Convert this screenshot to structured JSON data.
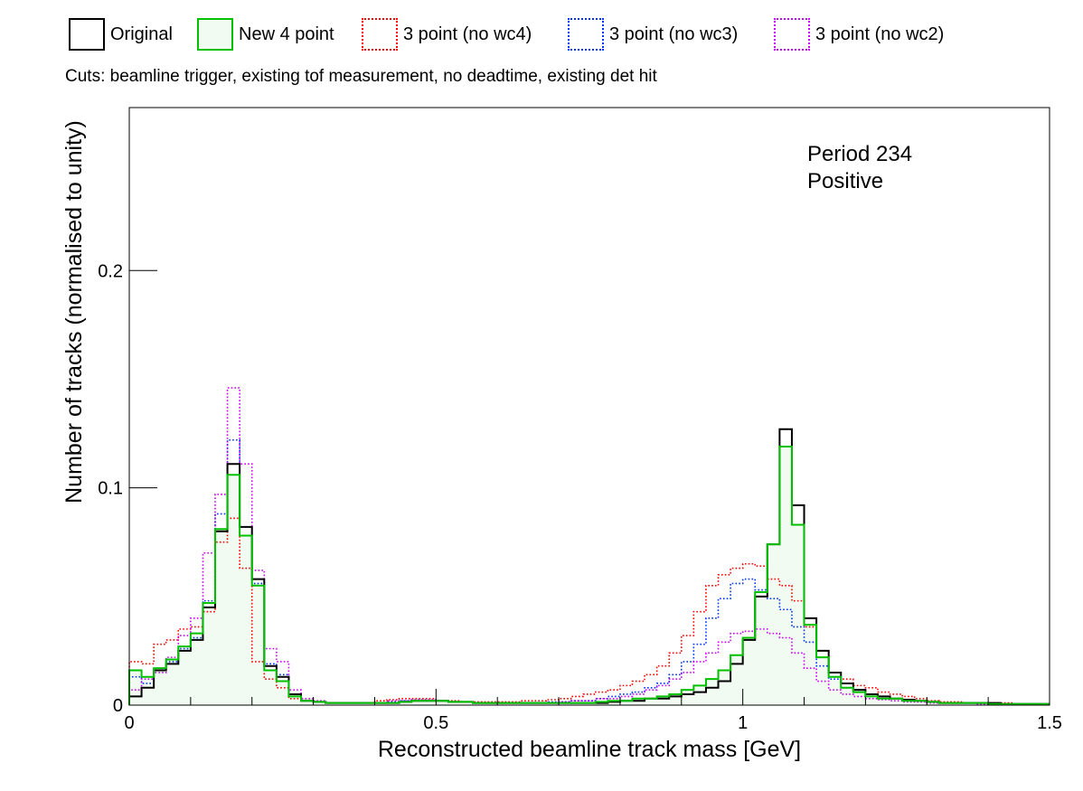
{
  "cuts_text": "Cuts: beamline trigger, existing tof measurement, no deadtime, existing det hit",
  "annotation": [
    "Period 234",
    "Positive"
  ],
  "chart_data": {
    "type": "line",
    "xlabel": "Reconstructed beamline track mass [GeV]",
    "ylabel": "Number of tracks (normalised to unity)",
    "xlim": [
      0,
      1.5
    ],
    "ylim": [
      0,
      0.275
    ],
    "xticks": [
      {
        "v": 0,
        "label": "0"
      },
      {
        "v": 0.5,
        "label": "0.5"
      },
      {
        "v": 1,
        "label": "1"
      },
      {
        "v": 1.5,
        "label": "1.5"
      }
    ],
    "yticks": [
      {
        "v": 0,
        "label": "0"
      },
      {
        "v": 0.1,
        "label": "0.1"
      },
      {
        "v": 0.2,
        "label": "0.2"
      }
    ],
    "bin_width": 0.02,
    "x_start": 0,
    "series": [
      {
        "name": "Original",
        "color": "#000000",
        "style": "solid",
        "fill": false,
        "values": [
          0.004,
          0.008,
          0.016,
          0.019,
          0.025,
          0.03,
          0.045,
          0.08,
          0.111,
          0.082,
          0.058,
          0.018,
          0.013,
          0.005,
          0.002,
          0.0015,
          0.001,
          0.001,
          0.001,
          0.001,
          0.001,
          0.001,
          0.0015,
          0.002,
          0.002,
          0.002,
          0.0015,
          0.0015,
          0.001,
          0.001,
          0.001,
          0.001,
          0.001,
          0.001,
          0.001,
          0.001,
          0.001,
          0.001,
          0.001,
          0.0015,
          0.002,
          0.002,
          0.003,
          0.003,
          0.004,
          0.005,
          0.006,
          0.008,
          0.011,
          0.019,
          0.03,
          0.05,
          0.074,
          0.127,
          0.092,
          0.04,
          0.025,
          0.015,
          0.01,
          0.007,
          0.005,
          0.004,
          0.003,
          0.0025,
          0.002,
          0.0015,
          0.001,
          0.001,
          0.001,
          0.001,
          0.001,
          0.0005,
          0.0005,
          0.0005,
          0.0005
        ]
      },
      {
        "name": "New 4 point",
        "color": "#00c000",
        "style": "solid",
        "fill": true,
        "fill_color": "#f1fbf1",
        "values": [
          0.016,
          0.013,
          0.017,
          0.021,
          0.027,
          0.033,
          0.047,
          0.081,
          0.106,
          0.078,
          0.055,
          0.016,
          0.011,
          0.004,
          0.002,
          0.0015,
          0.001,
          0.001,
          0.001,
          0.001,
          0.001,
          0.001,
          0.0015,
          0.002,
          0.002,
          0.002,
          0.0015,
          0.0015,
          0.001,
          0.001,
          0.001,
          0.001,
          0.001,
          0.001,
          0.001,
          0.001,
          0.001,
          0.001,
          0.0015,
          0.002,
          0.002,
          0.003,
          0.003,
          0.004,
          0.005,
          0.007,
          0.009,
          0.012,
          0.016,
          0.023,
          0.031,
          0.052,
          0.074,
          0.119,
          0.083,
          0.037,
          0.022,
          0.013,
          0.008,
          0.006,
          0.004,
          0.003,
          0.003,
          0.002,
          0.002,
          0.0015,
          0.001,
          0.001,
          0.001,
          0.001,
          0.0005,
          0.0005,
          0.0005,
          0.0005,
          0.0005
        ]
      },
      {
        "name": "3 point (no wc4)",
        "color": "#ff0000",
        "style": "dotted",
        "fill": false,
        "values": [
          0.02,
          0.019,
          0.028,
          0.03,
          0.035,
          0.036,
          0.043,
          0.075,
          0.086,
          0.063,
          0.02,
          0.012,
          0.008,
          0.003,
          0.002,
          0.0015,
          0.001,
          0.001,
          0.001,
          0.001,
          0.002,
          0.0025,
          0.003,
          0.003,
          0.003,
          0.002,
          0.002,
          0.0015,
          0.0015,
          0.0015,
          0.0015,
          0.0015,
          0.002,
          0.002,
          0.0025,
          0.003,
          0.004,
          0.005,
          0.006,
          0.007,
          0.009,
          0.011,
          0.014,
          0.018,
          0.024,
          0.032,
          0.043,
          0.055,
          0.06,
          0.063,
          0.065,
          0.064,
          0.058,
          0.055,
          0.048,
          0.036,
          0.022,
          0.015,
          0.012,
          0.009,
          0.008,
          0.006,
          0.005,
          0.004,
          0.003,
          0.002,
          0.0015,
          0.0015,
          0.001,
          0.001,
          0.001,
          0.001,
          0.0005,
          0.0005,
          0.0005
        ]
      },
      {
        "name": "3 point (no wc3)",
        "color": "#0033ff",
        "style": "dotted",
        "fill": false,
        "values": [
          0.013,
          0.01,
          0.016,
          0.02,
          0.026,
          0.031,
          0.048,
          0.088,
          0.122,
          0.082,
          0.056,
          0.019,
          0.014,
          0.005,
          0.002,
          0.0015,
          0.001,
          0.001,
          0.001,
          0.001,
          0.001,
          0.0015,
          0.002,
          0.002,
          0.002,
          0.002,
          0.0015,
          0.0015,
          0.001,
          0.001,
          0.001,
          0.001,
          0.001,
          0.001,
          0.0015,
          0.0015,
          0.002,
          0.002,
          0.003,
          0.004,
          0.005,
          0.006,
          0.008,
          0.01,
          0.014,
          0.02,
          0.028,
          0.04,
          0.049,
          0.056,
          0.058,
          0.053,
          0.049,
          0.044,
          0.036,
          0.029,
          0.018,
          0.012,
          0.008,
          0.006,
          0.005,
          0.004,
          0.003,
          0.0025,
          0.002,
          0.0015,
          0.001,
          0.001,
          0.001,
          0.001,
          0.0005,
          0.0005,
          0.0005,
          0.0005,
          0.0005
        ]
      },
      {
        "name": "3 point (no wc2)",
        "color": "#cc00ff",
        "style": "dotted",
        "fill": false,
        "values": [
          0.007,
          0.012,
          0.015,
          0.022,
          0.032,
          0.04,
          0.07,
          0.097,
          0.146,
          0.111,
          0.062,
          0.026,
          0.02,
          0.007,
          0.003,
          0.002,
          0.001,
          0.001,
          0.001,
          0.001,
          0.001,
          0.002,
          0.002,
          0.0025,
          0.0025,
          0.002,
          0.0015,
          0.0015,
          0.001,
          0.001,
          0.001,
          0.001,
          0.001,
          0.001,
          0.001,
          0.0015,
          0.002,
          0.002,
          0.003,
          0.003,
          0.004,
          0.005,
          0.007,
          0.009,
          0.012,
          0.015,
          0.02,
          0.024,
          0.029,
          0.033,
          0.034,
          0.035,
          0.033,
          0.031,
          0.024,
          0.017,
          0.011,
          0.007,
          0.005,
          0.004,
          0.003,
          0.0025,
          0.002,
          0.0015,
          0.0015,
          0.001,
          0.001,
          0.001,
          0.001,
          0.0005,
          0.0005,
          0.0005,
          0.0005,
          0.0005,
          0.0005
        ]
      }
    ]
  }
}
